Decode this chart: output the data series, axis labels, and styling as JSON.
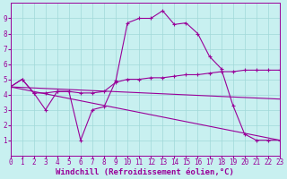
{
  "bg_color": "#c8f0f0",
  "line_color": "#990099",
  "grid_color": "#a0d8d8",
  "xlabel": "Windchill (Refroidissement éolien,°C)",
  "tick_fontsize": 5.5,
  "xlabel_fontsize": 6.5,
  "xlim": [
    0,
    23
  ],
  "ylim": [
    0,
    10
  ],
  "xticks": [
    0,
    1,
    2,
    3,
    4,
    5,
    6,
    7,
    8,
    9,
    10,
    11,
    12,
    13,
    14,
    15,
    16,
    17,
    18,
    19,
    20,
    21,
    22,
    23
  ],
  "yticks": [
    1,
    2,
    3,
    4,
    5,
    6,
    7,
    8,
    9
  ],
  "line1_x": [
    0,
    1,
    2,
    3,
    4,
    5,
    6,
    7,
    8,
    9,
    10,
    11,
    12,
    13,
    14,
    15,
    16,
    17,
    18,
    19,
    20,
    21,
    22,
    23
  ],
  "line1_y": [
    4.5,
    5.0,
    4.1,
    3.0,
    4.2,
    4.2,
    1.0,
    3.0,
    3.2,
    4.9,
    8.7,
    9.0,
    9.0,
    9.5,
    8.6,
    8.7,
    8.0,
    6.5,
    5.7,
    3.3,
    1.4,
    1.0,
    1.0,
    1.0
  ],
  "line2_x": [
    0,
    1,
    2,
    3,
    4,
    5,
    6,
    7,
    8,
    9,
    10,
    11,
    12,
    13,
    14,
    15,
    16,
    17,
    18,
    19,
    20,
    21,
    22,
    23
  ],
  "line2_y": [
    4.5,
    5.0,
    4.1,
    4.1,
    4.2,
    4.2,
    4.1,
    4.1,
    4.2,
    4.8,
    5.0,
    5.0,
    5.1,
    5.1,
    5.2,
    5.3,
    5.3,
    5.4,
    5.5,
    5.5,
    5.6,
    5.6,
    5.6,
    5.6
  ],
  "line3_x": [
    0,
    23
  ],
  "line3_y": [
    4.5,
    3.7
  ],
  "line4_x": [
    0,
    23
  ],
  "line4_y": [
    4.5,
    1.0
  ]
}
